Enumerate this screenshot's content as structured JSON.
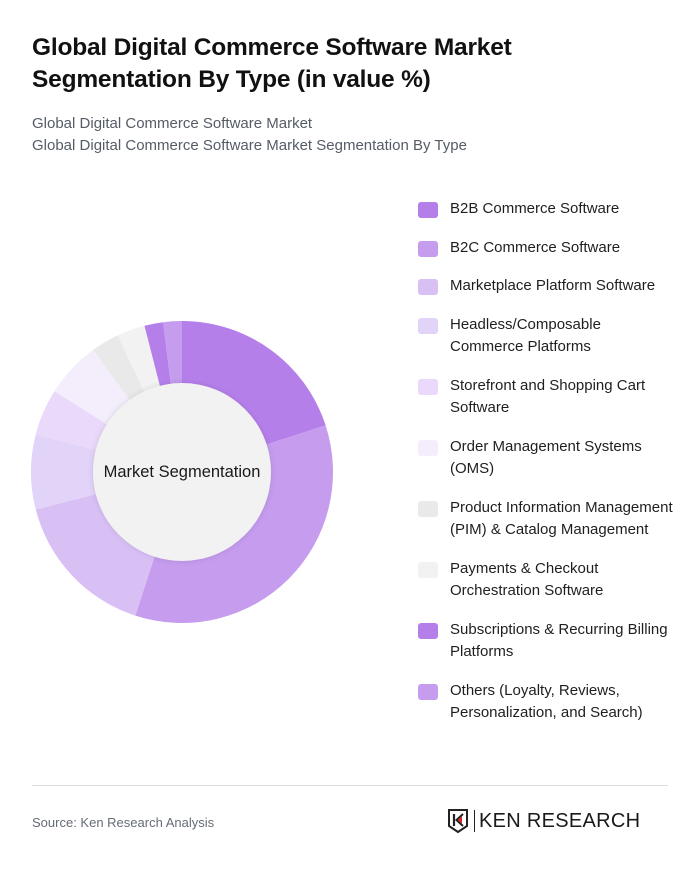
{
  "header": {
    "title": "Global Digital Commerce Software Market Segmentation By Type (in value %)",
    "subtitle_line1": "Global Digital Commerce Software Market",
    "subtitle_line2": "Global Digital Commerce Software Market Segmentation By Type"
  },
  "chart_data": {
    "type": "pie",
    "variant": "donut",
    "title": "Global Digital Commerce Software Market Segmentation By Type (in value %)",
    "center_label": "Market Segmentation",
    "legend_position": "right",
    "categories": [
      "B2B Commerce Software",
      "B2C Commerce Software",
      "Marketplace Platform Software",
      "Headless/Composable Commerce Platforms",
      "Storefront and Shopping Cart Software",
      "Order Management Systems (OMS)",
      "Product Information Management (PIM) & Catalog Management",
      "Payments & Checkout Orchestration Software",
      "Subscriptions & Recurring Billing Platforms",
      "Others (Loyalty, Reviews, Personalization, and Search)"
    ],
    "values": [
      20,
      35,
      16,
      8,
      5,
      6,
      3,
      3,
      2,
      2
    ],
    "colors": [
      "#b57fea",
      "#c59cee",
      "#d8c0f5",
      "#e2d3f8",
      "#ead9fa",
      "#f3edfc",
      "#e9e9e9",
      "#f2f2f2",
      "#b57fea",
      "#c59cee"
    ]
  },
  "legend": {
    "items": [
      {
        "label": "B2B Commerce Software",
        "color": "#b57fea"
      },
      {
        "label": "B2C Commerce Software",
        "color": "#c59cee"
      },
      {
        "label": "Marketplace Platform Software",
        "color": "#d8c0f5"
      },
      {
        "label": "Headless/Composable Commerce Platforms",
        "color": "#e2d3f8"
      },
      {
        "label": "Storefront and Shopping Cart Software",
        "color": "#ead9fa"
      },
      {
        "label": "Order Management Systems (OMS)",
        "color": "#f3edfc"
      },
      {
        "label": "Product Information Management (PIM) & Catalog Management",
        "color": "#e9e9e9"
      },
      {
        "label": "Payments & Checkout Orchestration Software",
        "color": "#f2f2f2"
      },
      {
        "label": "Subscriptions & Recurring Billing Platforms",
        "color": "#b57fea"
      },
      {
        "label": "Others (Loyalty, Reviews, Personalization, and Search)",
        "color": "#c59cee"
      }
    ]
  },
  "footer": {
    "source": "Source: Ken Research Analysis",
    "logo_text": "KEN RESEARCH"
  }
}
